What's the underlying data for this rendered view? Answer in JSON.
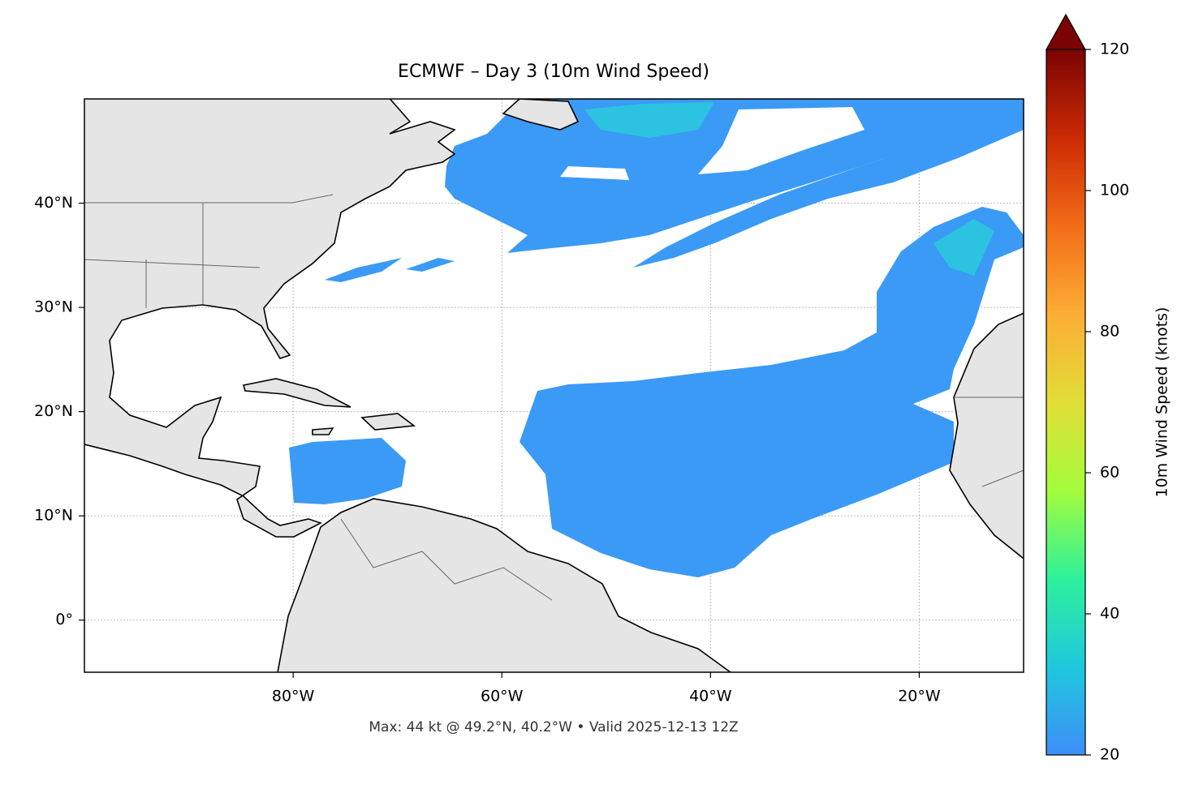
{
  "title": "ECMWF – Day 3 (10m Wind Speed)",
  "footer": "Max: 44 kt @ 49.2°N, 40.2°W • Valid 2025-12-13 12Z",
  "map": {
    "xlim": [
      -100,
      -10
    ],
    "ylim": [
      -5,
      50
    ],
    "xticks": [
      {
        "value": -80,
        "label": "80°W"
      },
      {
        "value": -60,
        "label": "60°W"
      },
      {
        "value": -40,
        "label": "40°W"
      },
      {
        "value": -20,
        "label": "20°W"
      }
    ],
    "yticks": [
      {
        "value": 0,
        "label": "0°"
      },
      {
        "value": 10,
        "label": "10°N"
      },
      {
        "value": 20,
        "label": "20°N"
      },
      {
        "value": 30,
        "label": "30°N"
      },
      {
        "value": 40,
        "label": "40°N"
      }
    ],
    "grid": true
  },
  "colorbar": {
    "label": "10m Wind Speed (knots)",
    "lim": [
      20,
      120
    ],
    "ticks": [
      20,
      40,
      60,
      80,
      100,
      120
    ],
    "colors": [
      "#3e8ef7",
      "#1fc8de",
      "#2ef19b",
      "#a4fc3c",
      "#e1dd37",
      "#fdad35",
      "#f26c17",
      "#cb2a04",
      "#7a0403"
    ]
  }
}
